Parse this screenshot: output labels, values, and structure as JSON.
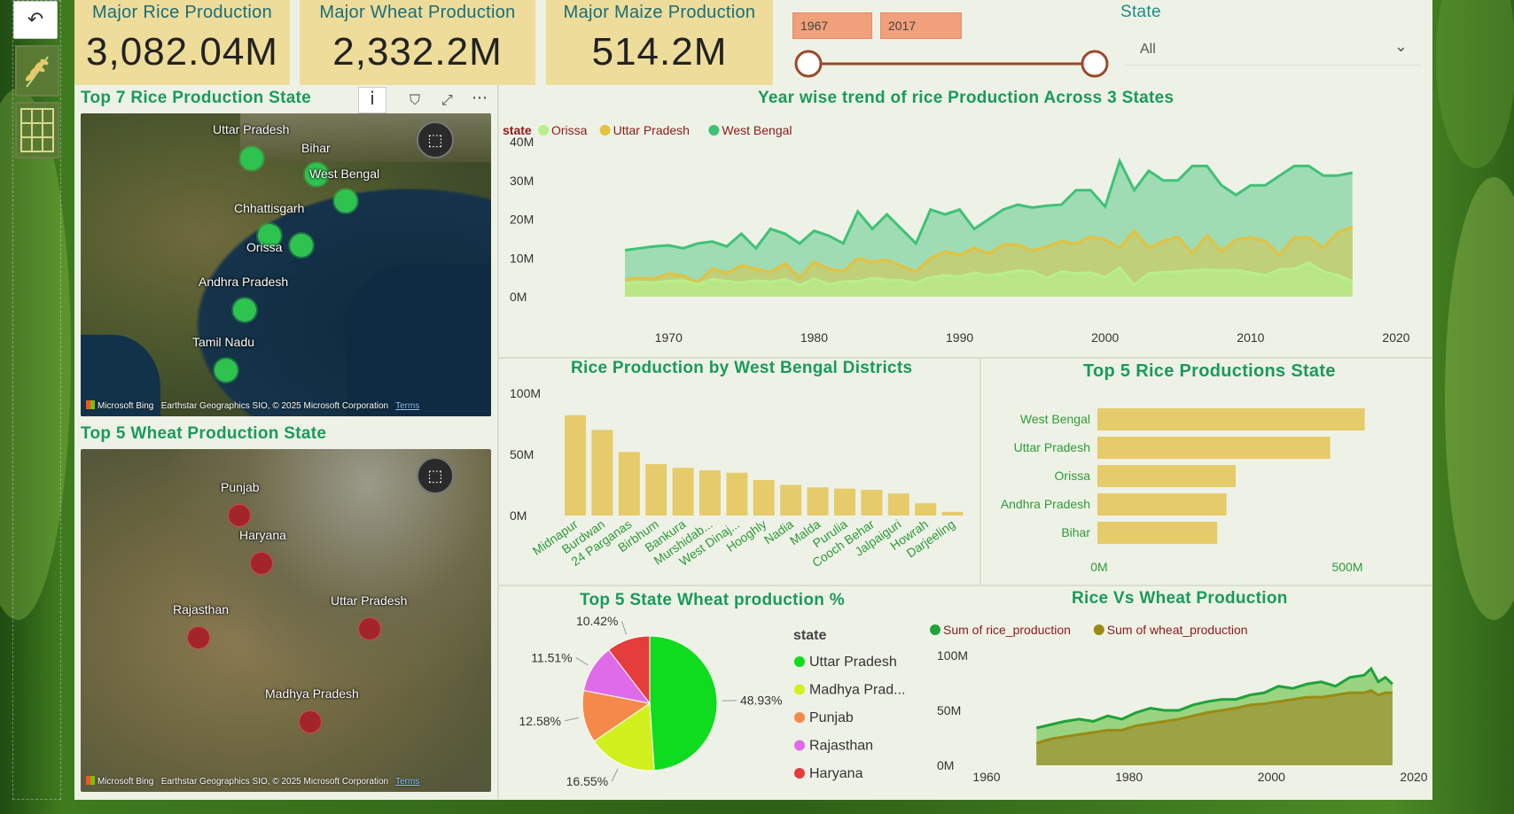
{
  "kpis": [
    {
      "title": "Major Rice Production",
      "value": "3,082.04M"
    },
    {
      "title": "Major Wheat Production",
      "value": "2,332.2M"
    },
    {
      "title": "Major Maize Production",
      "value": "514.2M"
    }
  ],
  "filters": {
    "year_start": "1967",
    "year_end": "2017",
    "state_label": "State",
    "state_selected": "All"
  },
  "rice_map": {
    "title": "Top 7 Rice Production State",
    "labels": [
      "Uttar Pradesh",
      "Bihar",
      "West Bengal",
      "Chhattisgarh",
      "Orissa",
      "Andhra Pradesh",
      "Tamil Nadu"
    ],
    "attribution": "Earthstar Geographics SIO, © 2025 Microsoft Corporation",
    "bing": "Microsoft Bing",
    "terms": "Terms"
  },
  "wheat_map": {
    "title": "Top 5 Wheat Production State",
    "labels": [
      "Punjab",
      "Haryana",
      "Rajasthan",
      "Uttar Pradesh",
      "Madhya Pradesh"
    ],
    "attribution": "Earthstar Geographics SIO, © 2025 Microsoft Corporation",
    "bing": "Microsoft Bing",
    "terms": "Terms"
  },
  "trend_chart": {
    "title": "Year wise trend of rice Production Across 3 States",
    "chart_data": {
      "type": "area",
      "legend_title": "state",
      "x": [
        1967,
        1968,
        1969,
        1970,
        1971,
        1972,
        1973,
        1974,
        1975,
        1976,
        1977,
        1978,
        1979,
        1980,
        1981,
        1982,
        1983,
        1984,
        1985,
        1986,
        1987,
        1988,
        1989,
        1990,
        1991,
        1992,
        1993,
        1994,
        1995,
        1996,
        1997,
        1998,
        1999,
        2000,
        2001,
        2002,
        2003,
        2004,
        2005,
        2006,
        2007,
        2008,
        2009,
        2010,
        2011,
        2012,
        2013,
        2014,
        2015,
        2016,
        2017
      ],
      "series": [
        {
          "name": "Orissa",
          "color": "#b8ef8a",
          "values": [
            3.5,
            3.8,
            3.6,
            4.0,
            4.2,
            3.2,
            4.5,
            4.0,
            3.6,
            4.2,
            3.8,
            4.5,
            3.0,
            4.6,
            3.2,
            3.9,
            4.0,
            4.8,
            4.4,
            4.2,
            3.6,
            5.0,
            5.5,
            5.2,
            6.2,
            5.5,
            6.0,
            6.8,
            6.5,
            4.8,
            6.5,
            6.0,
            6.2,
            5.0,
            7.5,
            3.0,
            6.0,
            6.3,
            6.5,
            6.8,
            7.0,
            6.8,
            6.9,
            6.2,
            5.5,
            7.0,
            7.2,
            8.8,
            6.5,
            5.5,
            4.0
          ]
        },
        {
          "name": "Uttar Pradesh",
          "color": "#e2c23f",
          "values": [
            2.5,
            2.7,
            2.6,
            3.3,
            3.0,
            2.0,
            4.0,
            3.4,
            4.5,
            4.0,
            3.5,
            4.8,
            2.7,
            5.0,
            4.0,
            3.6,
            5.5,
            5.0,
            5.3,
            4.4,
            3.6,
            5.5,
            6.5,
            6.0,
            7.0,
            6.2,
            7.5,
            7.5,
            6.6,
            7.2,
            8.0,
            7.6,
            8.6,
            8.2,
            7.0,
            9.5,
            7.0,
            8.0,
            8.6,
            6.2,
            8.8,
            6.5,
            8.2,
            8.5,
            8.0,
            6.0,
            8.5,
            8.5,
            7.0,
            9.2,
            10.0
          ]
        },
        {
          "name": "West Bengal",
          "color": "#3fc276",
          "values": [
            4.8,
            5.0,
            5.2,
            5.3,
            5.0,
            5.5,
            5.7,
            5.2,
            6.5,
            5.0,
            7.0,
            6.5,
            5.5,
            6.8,
            6.3,
            5.5,
            8.8,
            7.0,
            8.5,
            7.0,
            5.5,
            9.0,
            8.5,
            9.0,
            7.0,
            8.0,
            9.0,
            9.5,
            9.2,
            9.4,
            9.5,
            11.0,
            11.0,
            9.3,
            14.0,
            11.0,
            13.0,
            12.0,
            12.0,
            13.5,
            13.5,
            11.5,
            10.5,
            11.5,
            11.5,
            12.5,
            13.5,
            13.5,
            12.5,
            12.5,
            12.8
          ]
        }
      ],
      "yticks": [
        "0M",
        "10M",
        "20M",
        "30M",
        "40M"
      ],
      "ymax": 40,
      "xticks": [
        "1970",
        "1980",
        "1990",
        "2000",
        "2010",
        "2020"
      ]
    }
  },
  "wb_districts": {
    "title": "Rice Production by West Bengal Districts",
    "chart_data": {
      "type": "bar",
      "categories": [
        "Midnapur",
        "Burdwan",
        "24 Parganas",
        "Birbhum",
        "Bankura",
        "Murshidab...",
        "West Dinaj...",
        "Hooghly",
        "Nadia",
        "Malda",
        "Purulia",
        "Cooch Behar",
        "Jalpaiguri",
        "Howrah",
        "Darjeeling"
      ],
      "values": [
        82,
        70,
        52,
        42,
        39,
        37,
        35,
        29,
        25,
        23,
        22,
        21,
        18,
        10,
        3
      ],
      "yticks": [
        "0M",
        "50M",
        "100M"
      ],
      "ymax": 100,
      "color": "#e6cb6a"
    }
  },
  "top5_rice": {
    "title": "Top 5 Rice Productions State",
    "chart_data": {
      "type": "bar",
      "orientation": "horizontal",
      "categories": [
        "West Bengal",
        "Uttar Pradesh",
        "Orissa",
        "Andhra Pradesh",
        "Bihar"
      ],
      "values": [
        580,
        505,
        300,
        280,
        260
      ],
      "xticks": [
        "0M",
        "500M"
      ],
      "xmax": 500,
      "color": "#e6cb6a"
    }
  },
  "wheat_pie": {
    "title": "Top 5 State Wheat production %",
    "chart_data": {
      "type": "pie",
      "legend_title": "state",
      "slices": [
        {
          "name": "Uttar Pradesh",
          "pct": 48.93,
          "label": "48.93%",
          "color": "#0fdc1e"
        },
        {
          "name": "Madhya Prad...",
          "pct": 16.55,
          "label": "16.55%",
          "color": "#d2f01e"
        },
        {
          "name": "Punjab",
          "pct": 12.58,
          "label": "12.58%",
          "color": "#f5894a"
        },
        {
          "name": "Rajasthan",
          "pct": 11.51,
          "label": "11.51%",
          "color": "#e06be8"
        },
        {
          "name": "Haryana",
          "pct": 10.42,
          "label": "10.42%",
          "color": "#e53c3c"
        }
      ]
    }
  },
  "rice_vs_wheat": {
    "title": "Rice Vs Wheat Production",
    "chart_data": {
      "type": "area",
      "x": [
        1967,
        1969,
        1971,
        1973,
        1975,
        1977,
        1979,
        1981,
        1983,
        1985,
        1987,
        1989,
        1991,
        1993,
        1995,
        1997,
        1999,
        2001,
        2003,
        2005,
        2007,
        2009,
        2011,
        2013,
        2014,
        2015,
        2016,
        2017
      ],
      "series": [
        {
          "name": "Sum of rice_production",
          "color": "#1fa23a",
          "values": [
            34,
            37,
            40,
            42,
            40,
            45,
            42,
            48,
            52,
            50,
            50,
            55,
            58,
            60,
            60,
            64,
            66,
            72,
            70,
            74,
            76,
            72,
            80,
            82,
            88,
            76,
            80,
            74
          ]
        },
        {
          "name": "Sum of wheat_production",
          "color": "#9a8a14",
          "values": [
            20,
            24,
            26,
            28,
            30,
            32,
            32,
            36,
            38,
            40,
            42,
            45,
            48,
            50,
            52,
            55,
            56,
            58,
            60,
            62,
            62,
            64,
            66,
            66,
            68,
            64,
            66,
            66
          ]
        }
      ],
      "yticks": [
        "0M",
        "50M",
        "100M"
      ],
      "ymax": 100,
      "xticks": [
        "1960",
        "1980",
        "2000",
        "2020"
      ]
    }
  }
}
